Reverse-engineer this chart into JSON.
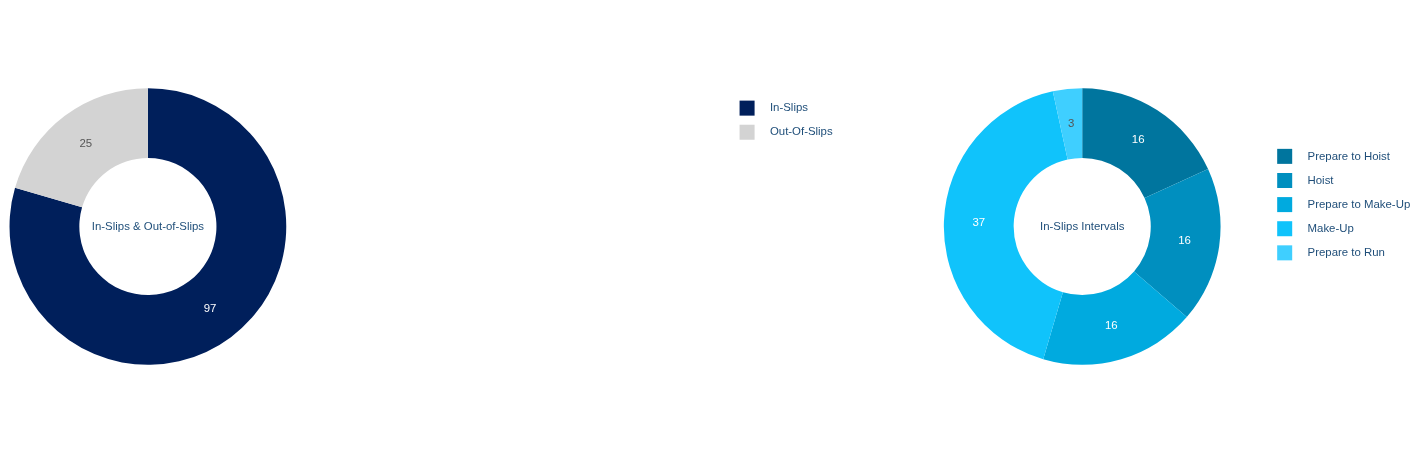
{
  "chart_data": [
    {
      "type": "donut",
      "title": "In-Slips & Out-of-Slips",
      "categories": [
        "In-Slips",
        "Out-Of-Slips"
      ],
      "values": [
        97,
        25
      ],
      "colors": [
        "#001f5b",
        "#d3d3d3"
      ],
      "data_labels": true,
      "legend": "right"
    },
    {
      "type": "donut",
      "title": "In-Slips Intervals",
      "categories": [
        "Prepare to Hoist",
        "Hoist",
        "Prepare to Make-Up",
        "Make-Up",
        "Prepare to Run"
      ],
      "values": [
        16,
        16,
        16,
        37,
        3
      ],
      "colors": [
        "#00759e",
        "#008fbf",
        "#00aadf",
        "#10c3fb",
        "#3fcfff"
      ],
      "data_labels": true,
      "legend": "right"
    }
  ]
}
